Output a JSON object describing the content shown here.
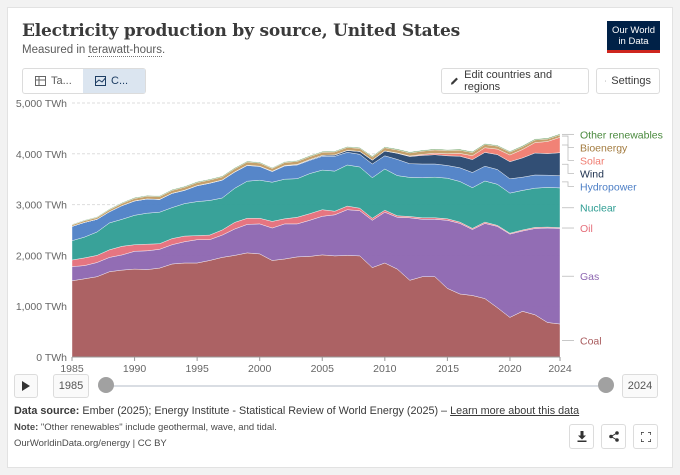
{
  "header": {
    "title": "Electricity production by source, United States",
    "subtitle_prefix": "Measured in ",
    "subtitle_unit": "terawatt-hours",
    "subtitle_suffix": ".",
    "logo_line1": "Our World",
    "logo_line2": "in Data"
  },
  "toolbar": {
    "tab_table": "Ta...",
    "tab_chart": "C...",
    "edit_label": "Edit countries and regions",
    "settings_label": "Settings"
  },
  "timeline": {
    "start_year": "1985",
    "end_year": "2024"
  },
  "footer": {
    "source_label": "Data source:",
    "source_text": " Ember (2025); Energy Institute - Statistical Review of World Energy (2025) – ",
    "source_link": "Learn more about this data",
    "note_label": "Note:",
    "note_text": " \"Other renewables\" include geothermal, wave, and tidal.",
    "license": "OurWorldinData.org/energy | CC BY"
  },
  "colors": {
    "Coal": "#a85a5c",
    "Gas": "#8c65b0",
    "Oil": "#e56e7a",
    "Nuclear": "#2e9d93",
    "Hydropower": "#4d7fc6",
    "Wind": "#27466e",
    "Solar": "#f07b6f",
    "Bioenergy": "#c19b63",
    "Other renewables": "#4a8a3e"
  },
  "chart_data": {
    "type": "area",
    "stacked": true,
    "x": [
      1985,
      1986,
      1987,
      1988,
      1989,
      1990,
      1991,
      1992,
      1993,
      1994,
      1995,
      1996,
      1997,
      1998,
      1999,
      2000,
      2001,
      2002,
      2003,
      2004,
      2005,
      2006,
      2007,
      2008,
      2009,
      2010,
      2011,
      2012,
      2013,
      2014,
      2015,
      2016,
      2017,
      2018,
      2019,
      2020,
      2021,
      2022,
      2023,
      2024
    ],
    "ylim": [
      0,
      5000
    ],
    "yticks": [
      0,
      1000,
      2000,
      3000,
      4000,
      5000
    ],
    "ytick_labels": [
      "0 TWh",
      "1,000 TWh",
      "2,000 TWh",
      "3,000 TWh",
      "4,000 TWh",
      "5,000 TWh"
    ],
    "xticks": [
      1985,
      1990,
      1995,
      2000,
      2005,
      2010,
      2015,
      2020,
      2024
    ],
    "series": [
      {
        "name": "Coal",
        "values": [
          1500,
          1540,
          1580,
          1680,
          1710,
          1730,
          1720,
          1750,
          1830,
          1850,
          1850,
          1900,
          1960,
          2000,
          2050,
          2030,
          1900,
          1930,
          1970,
          1980,
          2010,
          1990,
          2000,
          1990,
          1760,
          1850,
          1730,
          1510,
          1580,
          1580,
          1350,
          1240,
          1210,
          1150,
          970,
          780,
          900,
          830,
          680,
          650
        ]
      },
      {
        "name": "Gas",
        "values": [
          280,
          260,
          280,
          280,
          300,
          350,
          370,
          370,
          380,
          420,
          460,
          410,
          440,
          520,
          560,
          590,
          640,
          690,
          650,
          710,
          760,
          810,
          900,
          890,
          930,
          1000,
          1020,
          1230,
          1130,
          1130,
          1340,
          1390,
          1300,
          1480,
          1600,
          1640,
          1580,
          1700,
          1860,
          1880
        ]
      },
      {
        "name": "Oil",
        "values": [
          130,
          150,
          140,
          150,
          170,
          130,
          130,
          110,
          120,
          110,
          80,
          90,
          100,
          130,
          120,
          110,
          130,
          100,
          130,
          130,
          130,
          70,
          70,
          50,
          40,
          40,
          30,
          25,
          30,
          30,
          30,
          25,
          22,
          25,
          20,
          17,
          20,
          22,
          18,
          18
        ]
      },
      {
        "name": "Nuclear",
        "values": [
          380,
          410,
          460,
          530,
          530,
          580,
          610,
          620,
          610,
          640,
          670,
          680,
          630,
          670,
          730,
          750,
          770,
          780,
          760,
          790,
          780,
          790,
          810,
          810,
          800,
          810,
          790,
          770,
          790,
          800,
          800,
          800,
          800,
          810,
          810,
          790,
          780,
          770,
          780,
          780
        ]
      },
      {
        "name": "Hydropower",
        "values": [
          280,
          290,
          250,
          220,
          270,
          280,
          280,
          250,
          280,
          260,
          310,
          340,
          350,
          320,
          310,
          270,
          210,
          260,
          270,
          260,
          270,
          290,
          250,
          250,
          270,
          260,
          320,
          270,
          270,
          260,
          250,
          270,
          300,
          290,
          290,
          280,
          260,
          260,
          240,
          240
        ]
      },
      {
        "name": "Wind",
        "values": [
          0,
          0,
          0,
          0,
          0,
          3,
          3,
          3,
          3,
          4,
          4,
          4,
          4,
          4,
          5,
          6,
          7,
          10,
          11,
          14,
          18,
          27,
          35,
          55,
          74,
          95,
          120,
          141,
          168,
          182,
          191,
          227,
          254,
          273,
          295,
          338,
          379,
          434,
          425,
          453
        ]
      },
      {
        "name": "Solar",
        "values": [
          0,
          0,
          0,
          0,
          0,
          0,
          0,
          0,
          0,
          0,
          0,
          0,
          0,
          0,
          0,
          0,
          0,
          0,
          1,
          1,
          1,
          1,
          1,
          2,
          2,
          3,
          5,
          10,
          21,
          29,
          39,
          55,
          77,
          93,
          107,
          132,
          165,
          204,
          239,
          303
        ]
      },
      {
        "name": "Bioenergy",
        "values": [
          30,
          33,
          36,
          40,
          45,
          50,
          52,
          54,
          56,
          58,
          60,
          60,
          62,
          62,
          63,
          62,
          55,
          58,
          59,
          60,
          60,
          60,
          60,
          60,
          60,
          62,
          62,
          62,
          64,
          66,
          64,
          64,
          63,
          62,
          59,
          56,
          56,
          54,
          50,
          50
        ]
      },
      {
        "name": "Other renewables",
        "values": [
          10,
          11,
          12,
          13,
          14,
          15,
          15,
          15,
          16,
          16,
          15,
          16,
          16,
          16,
          16,
          16,
          15,
          15,
          15,
          16,
          16,
          16,
          16,
          16,
          16,
          16,
          17,
          17,
          17,
          17,
          17,
          17,
          17,
          17,
          17,
          17,
          17,
          17,
          17,
          17
        ]
      }
    ],
    "legend_placement": "right (inline labels)"
  }
}
